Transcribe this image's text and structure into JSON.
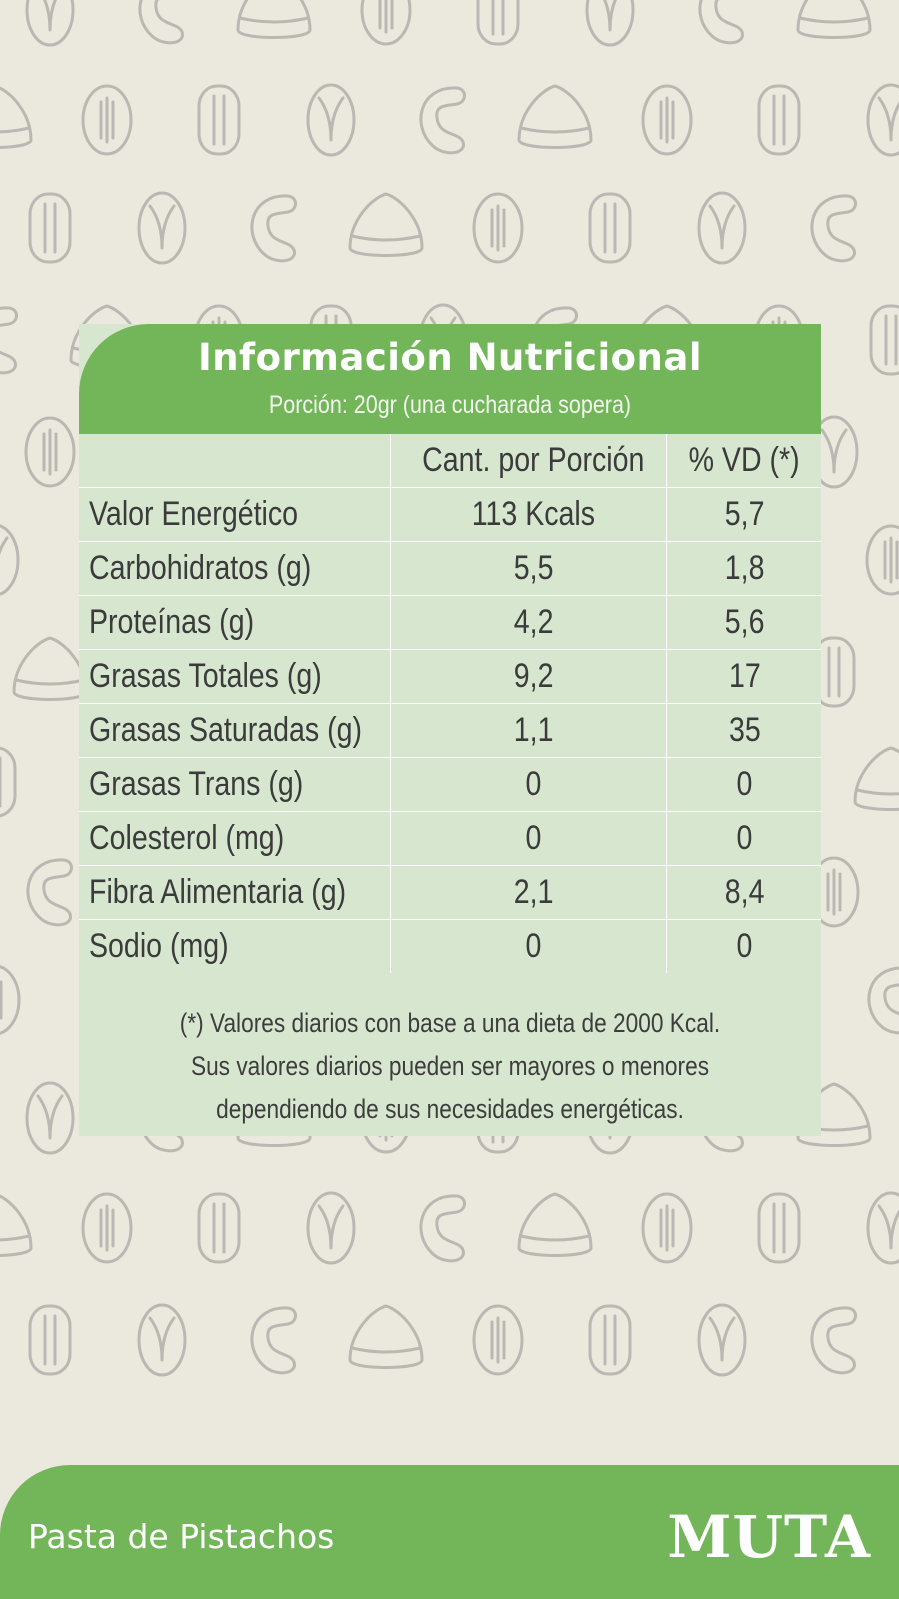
{
  "card": {
    "title": "Información Nutricional",
    "subtitle": "Porción: 20gr (una cucharada sopera)",
    "columns": [
      "",
      "Cant. por Porción",
      "% VD (*)"
    ],
    "rows": [
      {
        "label": "Valor Energético",
        "amount": "113 Kcals",
        "dv": "5,7"
      },
      {
        "label": "Carbohidratos (g)",
        "amount": "5,5",
        "dv": "1,8"
      },
      {
        "label": "Proteínas (g)",
        "amount": "4,2",
        "dv": "5,6"
      },
      {
        "label": "Grasas Totales (g)",
        "amount": "9,2",
        "dv": "17"
      },
      {
        "label": "Grasas Saturadas (g)",
        "amount": "1,1",
        "dv": "35"
      },
      {
        "label": "Grasas Trans (g)",
        "amount": "0",
        "dv": "0"
      },
      {
        "label": "Colesterol (mg)",
        "amount": "0",
        "dv": "0"
      },
      {
        "label": "Fibra Alimentaria (g)",
        "amount": "2,1",
        "dv": "8,4"
      },
      {
        "label": "Sodio (mg)",
        "amount": "0",
        "dv": "0"
      }
    ],
    "footnote": [
      "(*) Valores diarios con base a una dieta de 2000 Kcal.",
      "Sus valores diarios pueden ser mayores o menores",
      "dependiendo de sus necesidades energéticas."
    ]
  },
  "footer": {
    "product_name": "Pasta de Pistachos",
    "brand": "MUTA"
  },
  "colors": {
    "background": "#ebe8dd",
    "accent_green": "#72b659",
    "table_green": "#d6e6cf",
    "pattern_stroke": "#b9b8b2"
  },
  "pattern_icons": [
    "pistachio-icon",
    "cashew-icon",
    "chestnut-icon",
    "almond-icon",
    "pecan-icon"
  ]
}
